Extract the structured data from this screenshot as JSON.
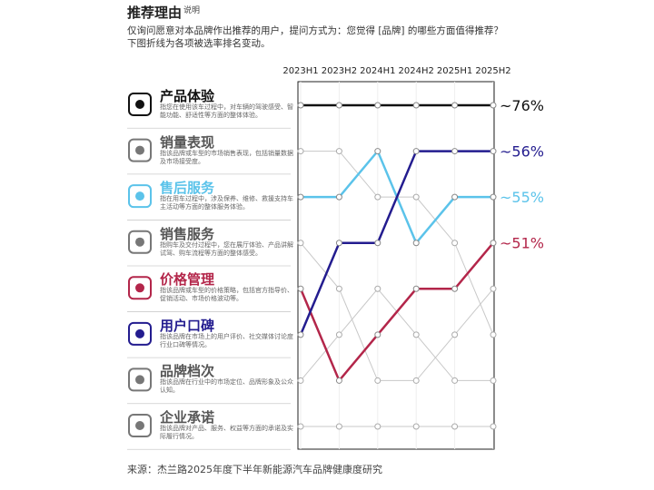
{
  "chart_data": {
    "type": "bump",
    "title": "推荐理由",
    "title_note": "说明",
    "subtitle": [
      "仅询问愿意对本品牌作出推荐的用户，提问方式为：您觉得 [品牌] 的哪些方面值得推荐？",
      "下图折线为各项被选率排名变动。"
    ],
    "categories": [
      "2023H1",
      "2023H2",
      "2024H1",
      "2024H2",
      "2025H1",
      "2025H2"
    ],
    "ylim": [
      1,
      8
    ],
    "y_inverted": true,
    "series": [
      {
        "name": "产品体验",
        "description": "指您在使用该车过程中，对车辆的驾驶感受、智能功能、舒适性等方面的整体体验。",
        "color": "#111111",
        "values": [
          1,
          1,
          1,
          1,
          1,
          1
        ],
        "share": 76,
        "share_label": "~76%"
      },
      {
        "name": "销量表现",
        "description": "指该品牌或车型的市场销售表现，包括销量数据及市场接受度。",
        "color": "#9a9a9a",
        "values": [
          2,
          2,
          3,
          3,
          4,
          6
        ]
      },
      {
        "name": "售后服务",
        "description": "指在用车过程中，涉及保养、维修、救援支持车主活动等方面的整体服务体验。",
        "color": "#5bc3ea",
        "values": [
          3,
          3,
          2,
          4,
          3,
          3
        ],
        "share": 55,
        "share_label": "~55%"
      },
      {
        "name": "销售服务",
        "description": "指购车及交付过程中，您在展厅体验、产品讲解试驾、购车流程等方面的整体感受。",
        "color": "#9a9a9a",
        "values": [
          4,
          5,
          7,
          7,
          6,
          5
        ]
      },
      {
        "name": "价格管理",
        "description": "指该品牌或车型的价格策略，包括官方指导价、促销活动、市场价格波动等。",
        "color": "#b3264a",
        "values": [
          5,
          7,
          6,
          5,
          5,
          4
        ],
        "share": 51,
        "share_label": "~51%"
      },
      {
        "name": "用户口碑",
        "description": "指该品牌在市场上的用户评价、社交媒体讨论度行业口碑等情况。",
        "color": "#231c8f",
        "values": [
          6,
          4,
          4,
          2,
          2,
          2
        ],
        "share": 56,
        "share_label": "~56%"
      },
      {
        "name": "品牌档次",
        "description": "指该品牌在行业中的市场定位、品牌形象及公众认知。",
        "color": "#9a9a9a",
        "values": [
          7,
          6,
          5,
          6,
          7,
          7
        ]
      },
      {
        "name": "企业承诺",
        "description": "指该品牌对产品、服务、权益等方面的承诺及实际履行情况。",
        "color": "#9a9a9a",
        "values": [
          8,
          8,
          8,
          8,
          8,
          8
        ]
      }
    ],
    "source": "来源：杰兰路2025年度下半年新能源汽车品牌健康度研究"
  }
}
